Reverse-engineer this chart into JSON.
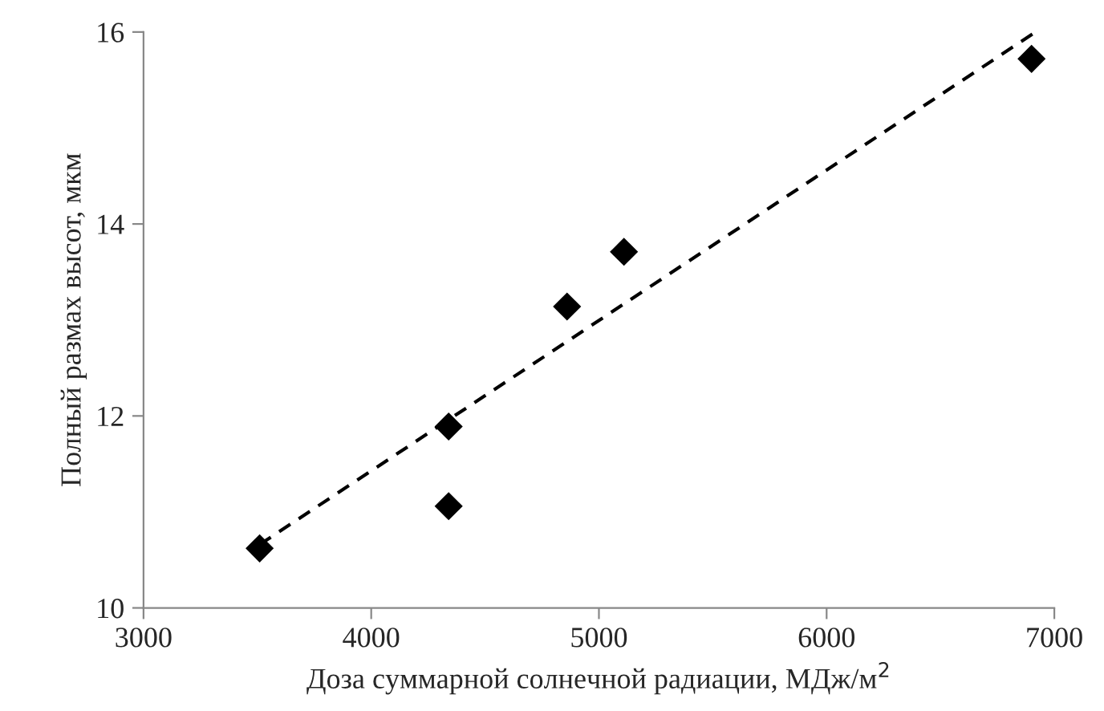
{
  "chart_data": {
    "type": "scatter",
    "xlabel": "Доза суммарной солнечной радиации, МДж/м$^{2}$",
    "ylabel": "Полный размах высот, мкм",
    "xlim": [
      3000,
      7000
    ],
    "xticks": [
      3000,
      4000,
      5000,
      6000,
      7000
    ],
    "ylim": [
      10,
      16
    ],
    "yticks": [
      10,
      12,
      14,
      16
    ],
    "grid": false,
    "series": [
      {
        "color": "#000000",
        "marker": "diamond",
        "x": [
          3510,
          4340,
          4340,
          4860,
          5110,
          6900
        ],
        "values": [
          10.62,
          11.89,
          11.06,
          13.14,
          13.71,
          15.72
        ]
      },
      {
        "type": "line",
        "color": "#000000",
        "line_style": "dashed",
        "marker": "none",
        "x": [
          3510,
          6905
        ],
        "values": [
          10.66,
          15.98
        ]
      }
    ]
  }
}
